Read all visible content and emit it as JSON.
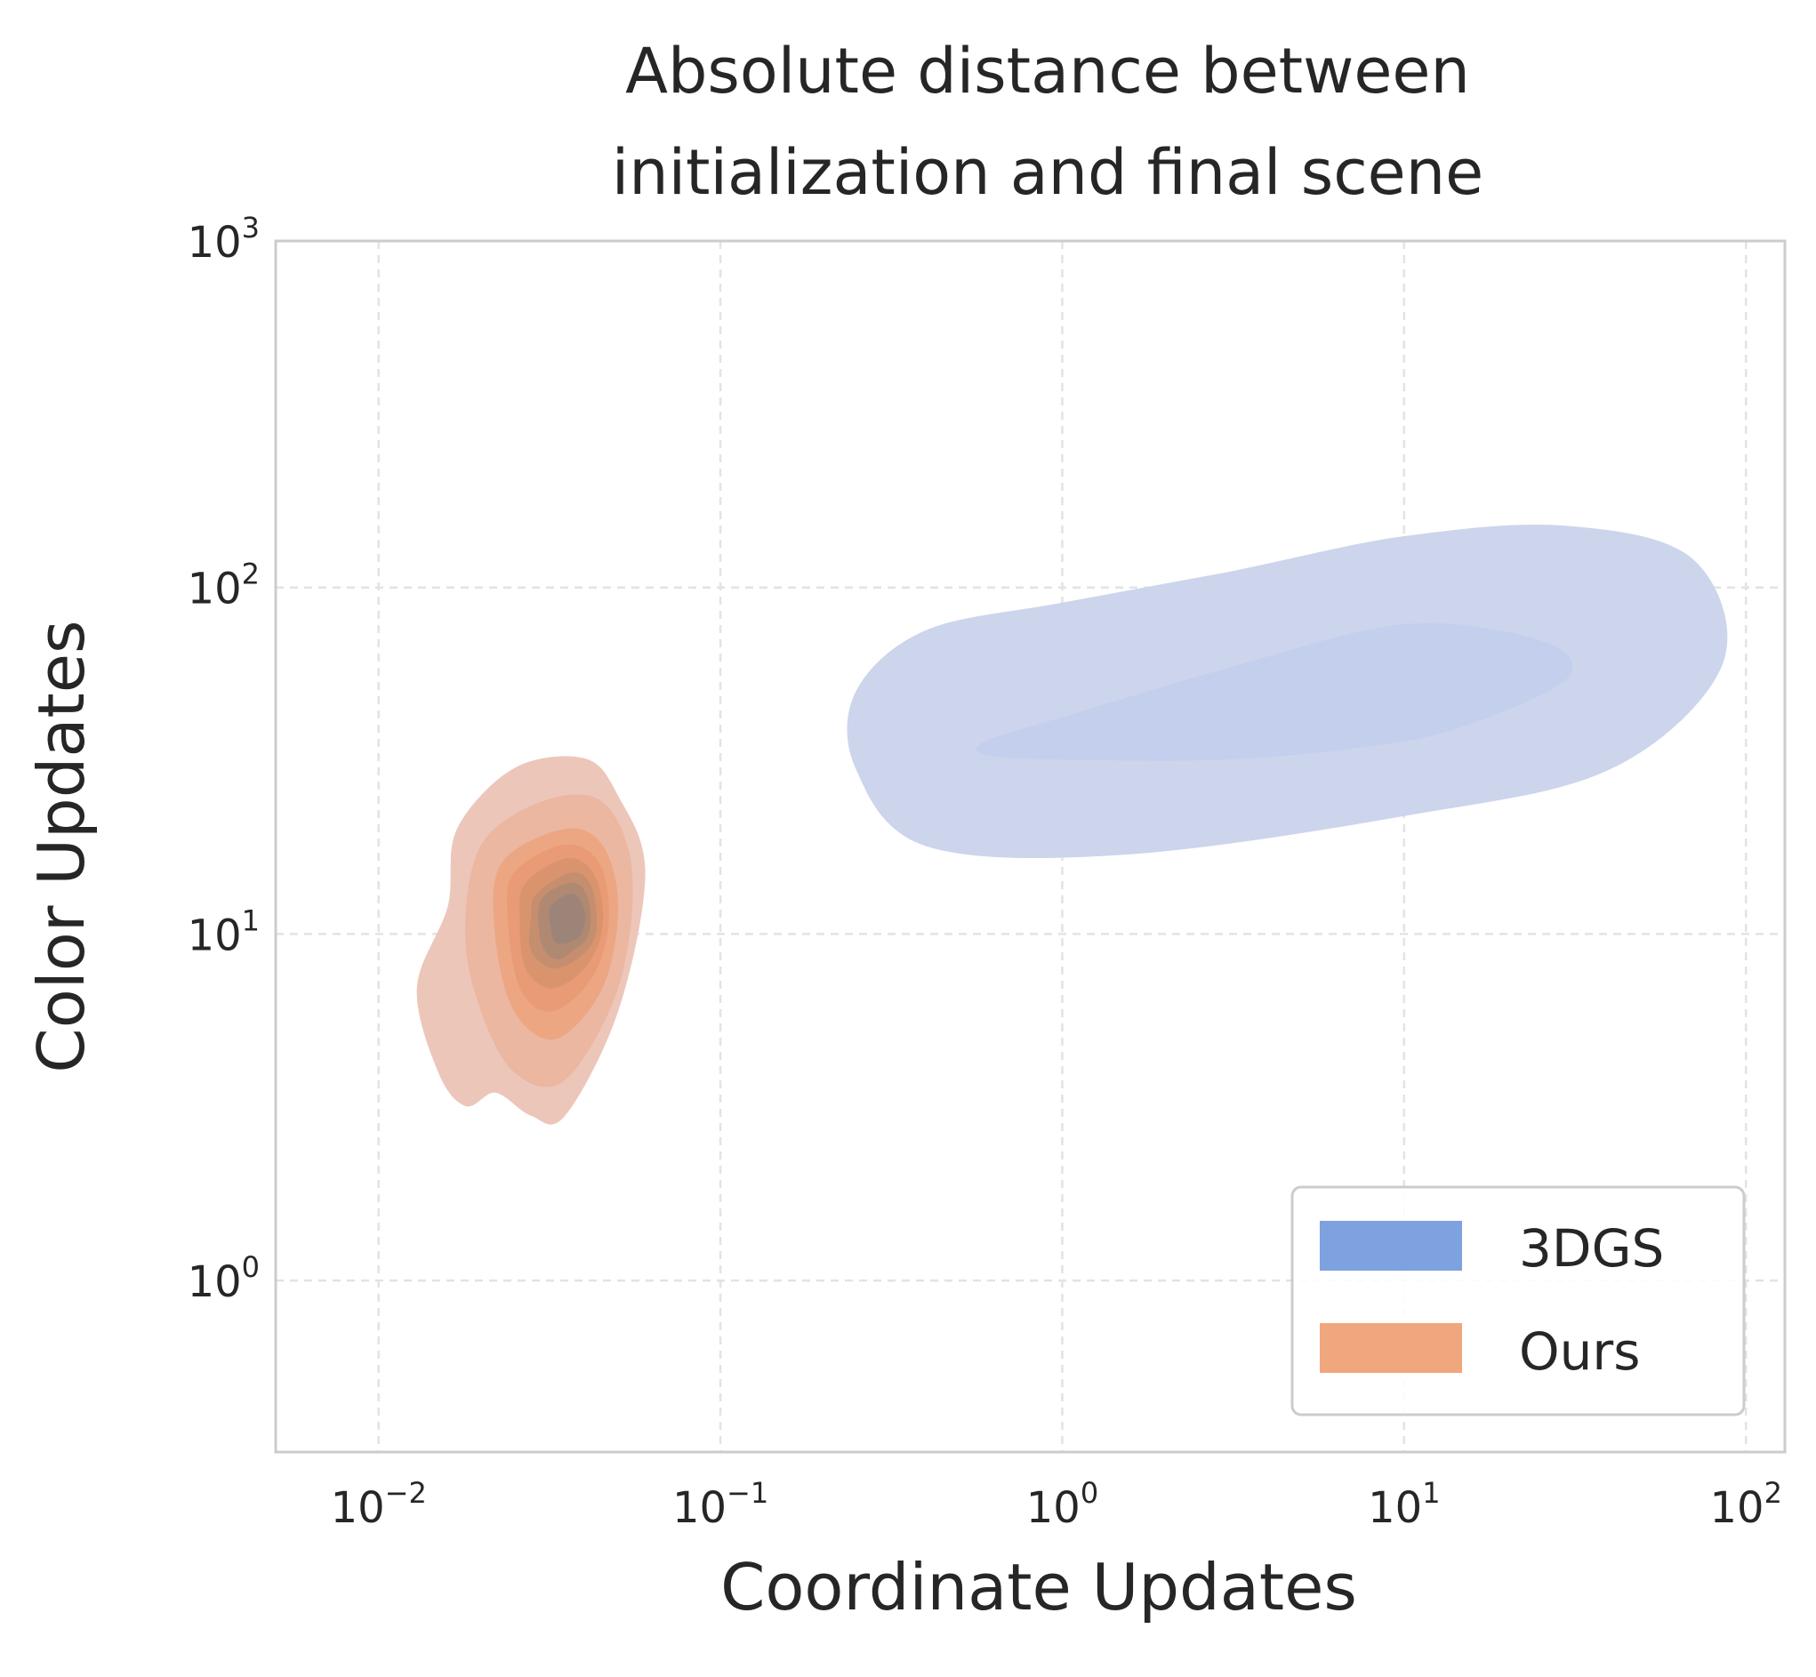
{
  "chart_data": {
    "type": "kde-contour",
    "title": [
      "Absolute distance between",
      "initialization and final scene"
    ],
    "xlabel": "Coordinate Updates",
    "ylabel": "Color Updates",
    "xscale": "log",
    "yscale": "log",
    "xlim": [
      0.005,
      130
    ],
    "ylim": [
      0.32,
      1000
    ],
    "x_ticks": [
      {
        "value": 0.01,
        "base": "10",
        "exp": "−2"
      },
      {
        "value": 0.1,
        "base": "10",
        "exp": "−1"
      },
      {
        "value": 1,
        "base": "10",
        "exp": "0"
      },
      {
        "value": 10,
        "base": "10",
        "exp": "1"
      },
      {
        "value": 100,
        "base": "10",
        "exp": "2"
      }
    ],
    "y_ticks": [
      {
        "value": 1,
        "base": "10",
        "exp": "0"
      },
      {
        "value": 10,
        "base": "10",
        "exp": "1"
      },
      {
        "value": 100,
        "base": "10",
        "exp": "2"
      },
      {
        "value": 1000,
        "base": "10",
        "exp": "3"
      }
    ],
    "grid": true,
    "legend_position": "lower-right",
    "series": [
      {
        "name": "3DGS",
        "color": "#7ea1e0",
        "contours": [
          {
            "level": 1,
            "color": "#ccd5ec",
            "points": [
              [
                0.25,
                50
              ],
              [
                0.4,
                75
              ],
              [
                1,
                90
              ],
              [
                3,
                110
              ],
              [
                10,
                140
              ],
              [
                30,
                150
              ],
              [
                70,
                120
              ],
              [
                85,
                60
              ],
              [
                40,
                30
              ],
              [
                10,
                22
              ],
              [
                1.5,
                17
              ],
              [
                0.4,
                18
              ],
              [
                0.25,
                30
              ]
            ]
          },
          {
            "level": 2,
            "color": "#c3cfec",
            "points": [
              [
                0.6,
                36
              ],
              [
                1,
                42
              ],
              [
                3,
                58
              ],
              [
                10,
                78
              ],
              [
                25,
                70
              ],
              [
                30,
                55
              ],
              [
                15,
                40
              ],
              [
                8,
                35
              ],
              [
                3,
                32
              ],
              [
                1,
                32
              ],
              [
                0.6,
                33
              ]
            ]
          }
        ]
      },
      {
        "name": "Ours",
        "color": "#f0a77e",
        "contours": [
          {
            "level": 1,
            "color": "#edc6ba",
            "points": [
              [
                0.017,
                20
              ],
              [
                0.025,
                30
              ],
              [
                0.04,
                32
              ],
              [
                0.05,
                25
              ],
              [
                0.06,
                15
              ],
              [
                0.05,
                6
              ],
              [
                0.035,
                3
              ],
              [
                0.028,
                3
              ],
              [
                0.022,
                3.5
              ],
              [
                0.018,
                3.2
              ],
              [
                0.015,
                4
              ],
              [
                0.013,
                7
              ],
              [
                0.016,
                12
              ]
            ]
          },
          {
            "level": 2,
            "color": "#ebb7a1",
            "points": [
              [
                0.02,
                18
              ],
              [
                0.03,
                24
              ],
              [
                0.045,
                24
              ],
              [
                0.055,
                15
              ],
              [
                0.05,
                7
              ],
              [
                0.035,
                3.8
              ],
              [
                0.025,
                4
              ],
              [
                0.02,
                6
              ],
              [
                0.018,
                10
              ]
            ]
          },
          {
            "level": 3,
            "color": "#eca682",
            "points": [
              [
                0.023,
                16
              ],
              [
                0.035,
                20
              ],
              [
                0.045,
                18
              ],
              [
                0.05,
                12
              ],
              [
                0.045,
                7
              ],
              [
                0.033,
                5
              ],
              [
                0.025,
                6
              ],
              [
                0.022,
                10
              ]
            ]
          },
          {
            "level": 4,
            "color": "#e89b75",
            "points": [
              [
                0.025,
                15
              ],
              [
                0.035,
                18
              ],
              [
                0.044,
                16
              ],
              [
                0.047,
                11
              ],
              [
                0.042,
                7.5
              ],
              [
                0.032,
                6
              ],
              [
                0.026,
                7
              ],
              [
                0.024,
                11
              ]
            ]
          },
          {
            "level": 5,
            "color": "#d9946e",
            "points": [
              [
                0.027,
                14
              ],
              [
                0.036,
                16.5
              ],
              [
                0.043,
                14.5
              ],
              [
                0.045,
                10.5
              ],
              [
                0.04,
                8
              ],
              [
                0.032,
                7
              ],
              [
                0.027,
                8
              ],
              [
                0.026,
                11
              ]
            ]
          },
          {
            "level": 6,
            "color": "#c58e6f",
            "points": [
              [
                0.029,
                13
              ],
              [
                0.037,
                15
              ],
              [
                0.042,
                13.5
              ],
              [
                0.043,
                10
              ],
              [
                0.038,
                8.5
              ],
              [
                0.032,
                8
              ],
              [
                0.028,
                9
              ],
              [
                0.028,
                11
              ]
            ]
          },
          {
            "level": 7,
            "color": "#b08972",
            "points": [
              [
                0.03,
                12.5
              ],
              [
                0.037,
                14
              ],
              [
                0.041,
                12.5
              ],
              [
                0.041,
                10
              ],
              [
                0.037,
                9
              ],
              [
                0.033,
                8.5
              ],
              [
                0.03,
                9.5
              ]
            ]
          },
          {
            "level": 8,
            "color": "#9c8578",
            "points": [
              [
                0.032,
                12
              ],
              [
                0.037,
                13
              ],
              [
                0.04,
                11.5
              ],
              [
                0.039,
                10
              ],
              [
                0.036,
                9.5
              ],
              [
                0.033,
                9.5
              ],
              [
                0.032,
                10.5
              ]
            ]
          }
        ]
      }
    ]
  }
}
